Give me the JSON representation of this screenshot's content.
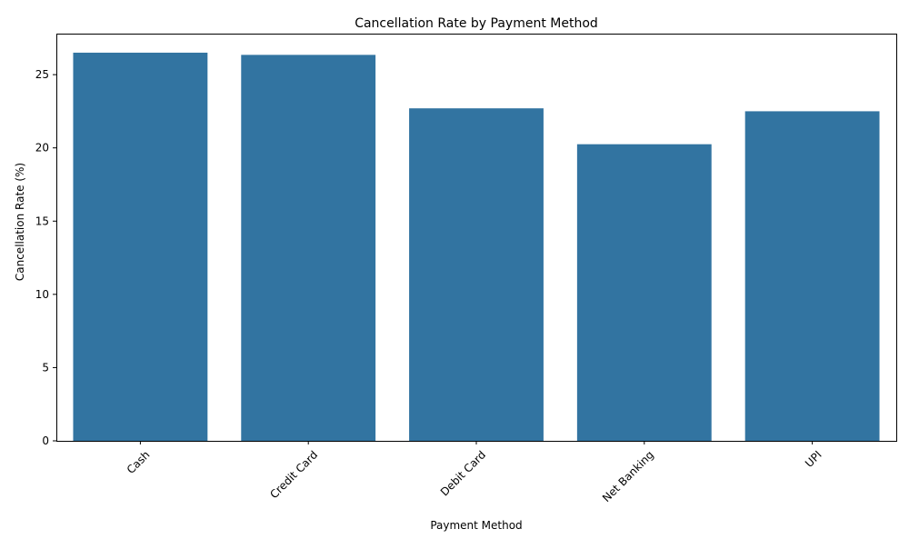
{
  "chart_data": {
    "type": "bar",
    "title": "Cancellation Rate by Payment Method",
    "xlabel": "Payment Method",
    "ylabel": "Cancellation Rate (%)",
    "categories": [
      "Cash",
      "Credit Card",
      "Debit Card",
      "Net Banking",
      "UPI"
    ],
    "values": [
      26.5,
      26.35,
      22.7,
      20.25,
      22.5
    ],
    "ylim": [
      0,
      27.8
    ],
    "yticks": [
      0,
      5,
      10,
      15,
      20,
      25
    ],
    "bar_color": "#3274a1",
    "grid": false,
    "legend": "none",
    "xtick_rotation_deg": 45
  }
}
